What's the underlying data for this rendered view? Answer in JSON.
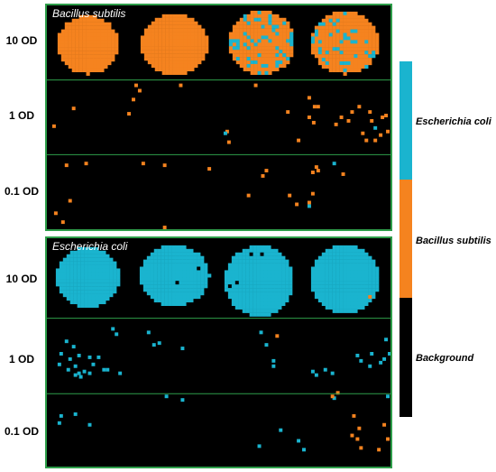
{
  "panels": [
    {
      "title": "Bacillus subtilis",
      "row_labels": [
        "10 OD",
        "1 OD",
        "0.1 OD"
      ],
      "colony_species": "Bacillus subtilis",
      "colony_color": "#f5831f"
    },
    {
      "title": "Escherichia coli",
      "row_labels": [
        "10 OD",
        "1 OD",
        "0.1 OD"
      ],
      "colony_species": "Escherichia coli",
      "colony_color": "#1ab4cf"
    }
  ],
  "legend": {
    "items": [
      {
        "label": "Escherichia coli",
        "color": "#1ab4cf"
      },
      {
        "label": "Bacillus subtilis",
        "color": "#f5831f"
      },
      {
        "label": "Background",
        "color": "#000000"
      }
    ]
  },
  "colors": {
    "border": "#2e9e4a",
    "divider": "#2e9e4a",
    "background": "#000000"
  }
}
